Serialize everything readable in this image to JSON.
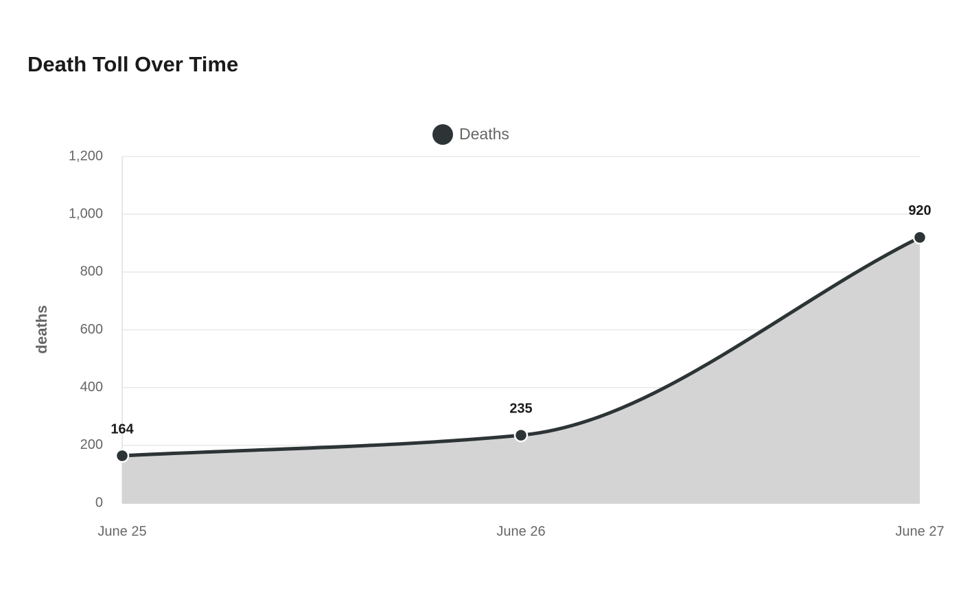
{
  "chart_data": {
    "type": "line",
    "title": "Death Toll Over Time",
    "y_label": "deaths",
    "categories": [
      "June 25",
      "June 26",
      "June 27"
    ],
    "series": [
      {
        "name": "Deaths",
        "color": "#2d3436",
        "area_color": "#d4d4d4",
        "values": [
          164,
          235,
          920
        ]
      }
    ],
    "ylim": [
      0,
      1200
    ],
    "yticks": [
      0,
      200,
      400,
      600,
      800,
      {
        "value": 1000,
        "label": "1,000"
      },
      {
        "value": 1200,
        "label": "1,200"
      }
    ],
    "grid": true,
    "legend": "top"
  }
}
